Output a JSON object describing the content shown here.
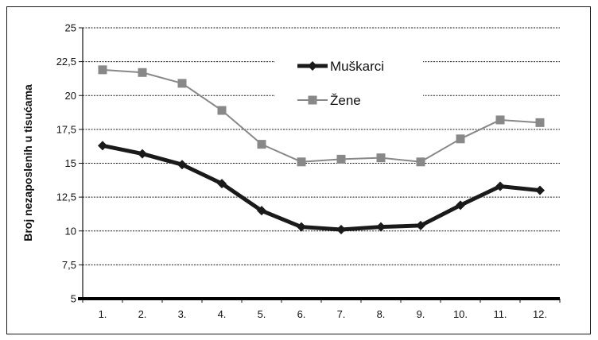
{
  "chart_data": {
    "type": "line",
    "title": "",
    "xlabel": "",
    "ylabel": "Broj nezaposlenih u tisućama",
    "categories": [
      "1.",
      "2.",
      "3.",
      "4.",
      "5.",
      "6.",
      "7.",
      "8.",
      "9.",
      "10.",
      "11.",
      "12."
    ],
    "y_ticks": [
      "5",
      "7,5",
      "10",
      "12,5",
      "15",
      "17,5",
      "20",
      "22,5",
      "25"
    ],
    "ylim": [
      5,
      25
    ],
    "grid": true,
    "legend_position": "top-center",
    "series": [
      {
        "name": "Muškarci",
        "values": [
          16.3,
          15.7,
          14.9,
          13.5,
          11.5,
          10.3,
          10.1,
          10.3,
          10.4,
          11.9,
          13.3,
          13.0
        ],
        "color": "#1a1a1a",
        "marker": "diamond"
      },
      {
        "name": "Žene",
        "values": [
          21.9,
          21.7,
          20.9,
          18.9,
          16.4,
          15.1,
          15.3,
          15.4,
          15.1,
          16.8,
          18.2,
          18.0
        ],
        "color": "#888888",
        "marker": "square"
      }
    ]
  }
}
